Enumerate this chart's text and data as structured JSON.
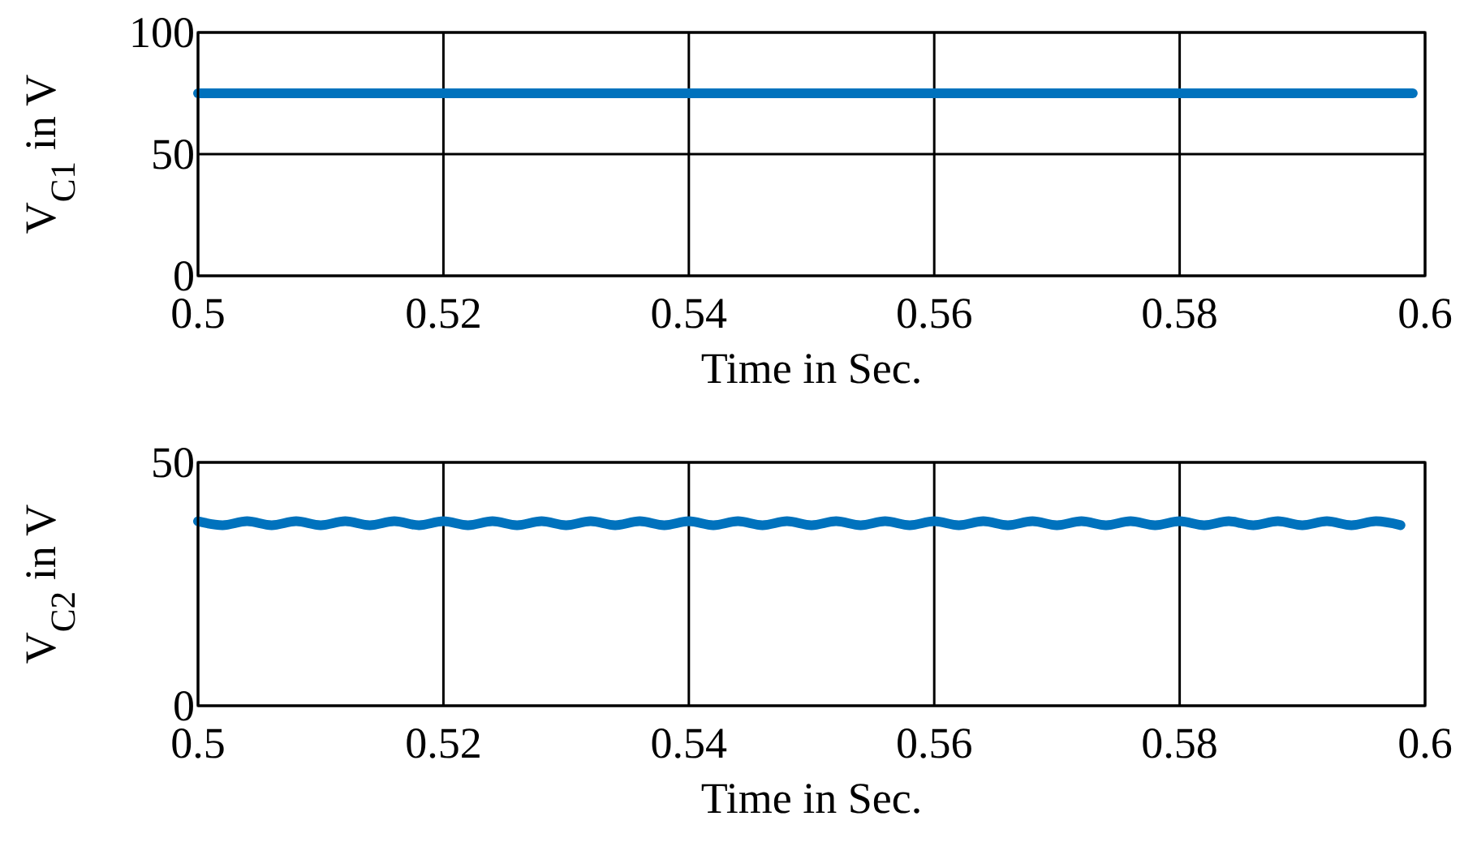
{
  "chart_data": [
    {
      "type": "line",
      "xlabel": "Time in Sec.",
      "ylabel": "V$_{C1}$ in V",
      "xlim": [
        0.5,
        0.6
      ],
      "ylim": [
        0,
        100
      ],
      "xticks": [
        0.5,
        0.52,
        0.54,
        0.56,
        0.58,
        0.6
      ],
      "yticks": [
        0,
        50,
        100
      ],
      "grid": true,
      "series": [
        {
          "color": "#0072bd",
          "x": [
            0.5,
            0.51,
            0.52,
            0.53,
            0.54,
            0.55,
            0.56,
            0.57,
            0.58,
            0.59,
            0.599
          ],
          "values": [
            75,
            75,
            75,
            75,
            75,
            75,
            75,
            75,
            75,
            75,
            75
          ]
        }
      ]
    },
    {
      "type": "line",
      "xlabel": "Time in Sec.",
      "ylabel": "V$_{C2}$ in V",
      "xlim": [
        0.5,
        0.6
      ],
      "ylim": [
        0,
        50
      ],
      "xticks": [
        0.5,
        0.52,
        0.54,
        0.56,
        0.58,
        0.6
      ],
      "yticks": [
        0,
        50
      ],
      "grid": true,
      "series": [
        {
          "color": "#0072bd",
          "x": [
            0.5,
            0.502,
            0.504,
            0.506,
            0.508,
            0.51,
            0.512,
            0.514,
            0.516,
            0.518,
            0.52,
            0.522,
            0.524,
            0.526,
            0.528,
            0.53,
            0.532,
            0.534,
            0.536,
            0.538,
            0.54,
            0.542,
            0.544,
            0.546,
            0.548,
            0.55,
            0.552,
            0.554,
            0.556,
            0.558,
            0.56,
            0.562,
            0.564,
            0.566,
            0.568,
            0.57,
            0.572,
            0.574,
            0.576,
            0.578,
            0.58,
            0.582,
            0.584,
            0.586,
            0.588,
            0.59,
            0.592,
            0.594,
            0.596,
            0.598
          ],
          "values": [
            37.9,
            37.1,
            37.9,
            37.1,
            37.9,
            37.1,
            37.9,
            37.1,
            37.9,
            37.1,
            37.9,
            37.1,
            37.9,
            37.1,
            37.9,
            37.1,
            37.9,
            37.1,
            37.9,
            37.1,
            37.9,
            37.1,
            37.9,
            37.1,
            37.9,
            37.1,
            37.9,
            37.1,
            37.9,
            37.1,
            37.9,
            37.1,
            37.9,
            37.1,
            37.9,
            37.1,
            37.9,
            37.1,
            37.9,
            37.1,
            37.9,
            37.1,
            37.9,
            37.1,
            37.9,
            37.1,
            37.9,
            37.1,
            37.9,
            37.1
          ]
        }
      ]
    }
  ]
}
